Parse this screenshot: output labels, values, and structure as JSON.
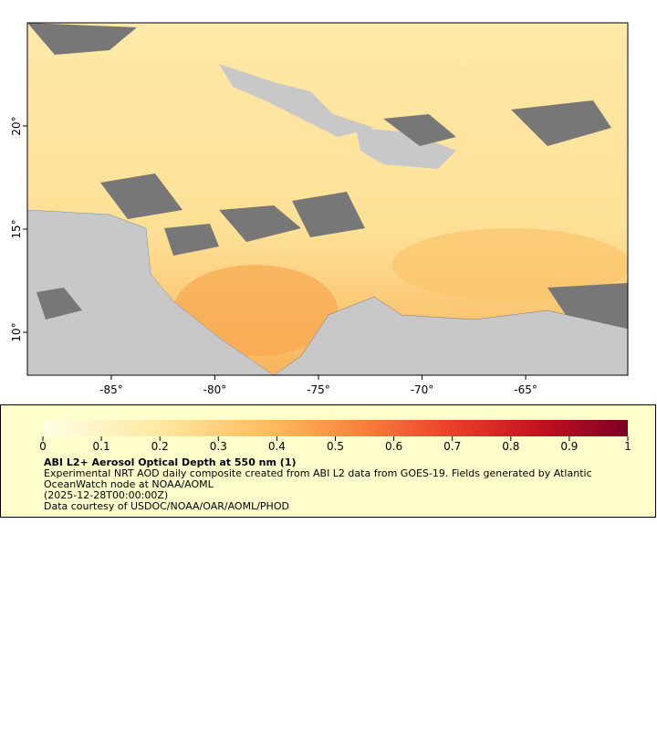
{
  "map": {
    "xlim": [
      -89.05,
      -60.07
    ],
    "ylim": [
      7.92,
      25.0
    ],
    "xticks": [
      {
        "value": -85,
        "label": "-85°"
      },
      {
        "value": -80,
        "label": "-80°"
      },
      {
        "value": -75,
        "label": "-75°"
      },
      {
        "value": -70,
        "label": "-70°"
      },
      {
        "value": -65,
        "label": "-65°"
      }
    ],
    "yticks": [
      {
        "value": 10,
        "label": "10°"
      },
      {
        "value": 15,
        "label": "15°"
      },
      {
        "value": 20,
        "label": "20°"
      }
    ]
  },
  "colorbar": {
    "lim": [
      0,
      1
    ],
    "ticks": [
      0,
      0.1,
      0.2,
      0.3,
      0.4,
      0.5,
      0.6,
      0.7,
      0.8,
      0.9,
      1
    ]
  },
  "legend": {
    "title": "ABI L2+ Aerosol Optical Depth at 550 nm (1)",
    "lines": [
      "Experimental NRT AOD daily composite created from ABI L2 data from GOES-19. Fields generated by Atlantic",
      "OceanWatch node at NOAA/AOML",
      "(2025-12-28T00:00:00Z)",
      "Data courtesy of USDOC/NOAA/OAR/AOML/PHOD"
    ]
  }
}
